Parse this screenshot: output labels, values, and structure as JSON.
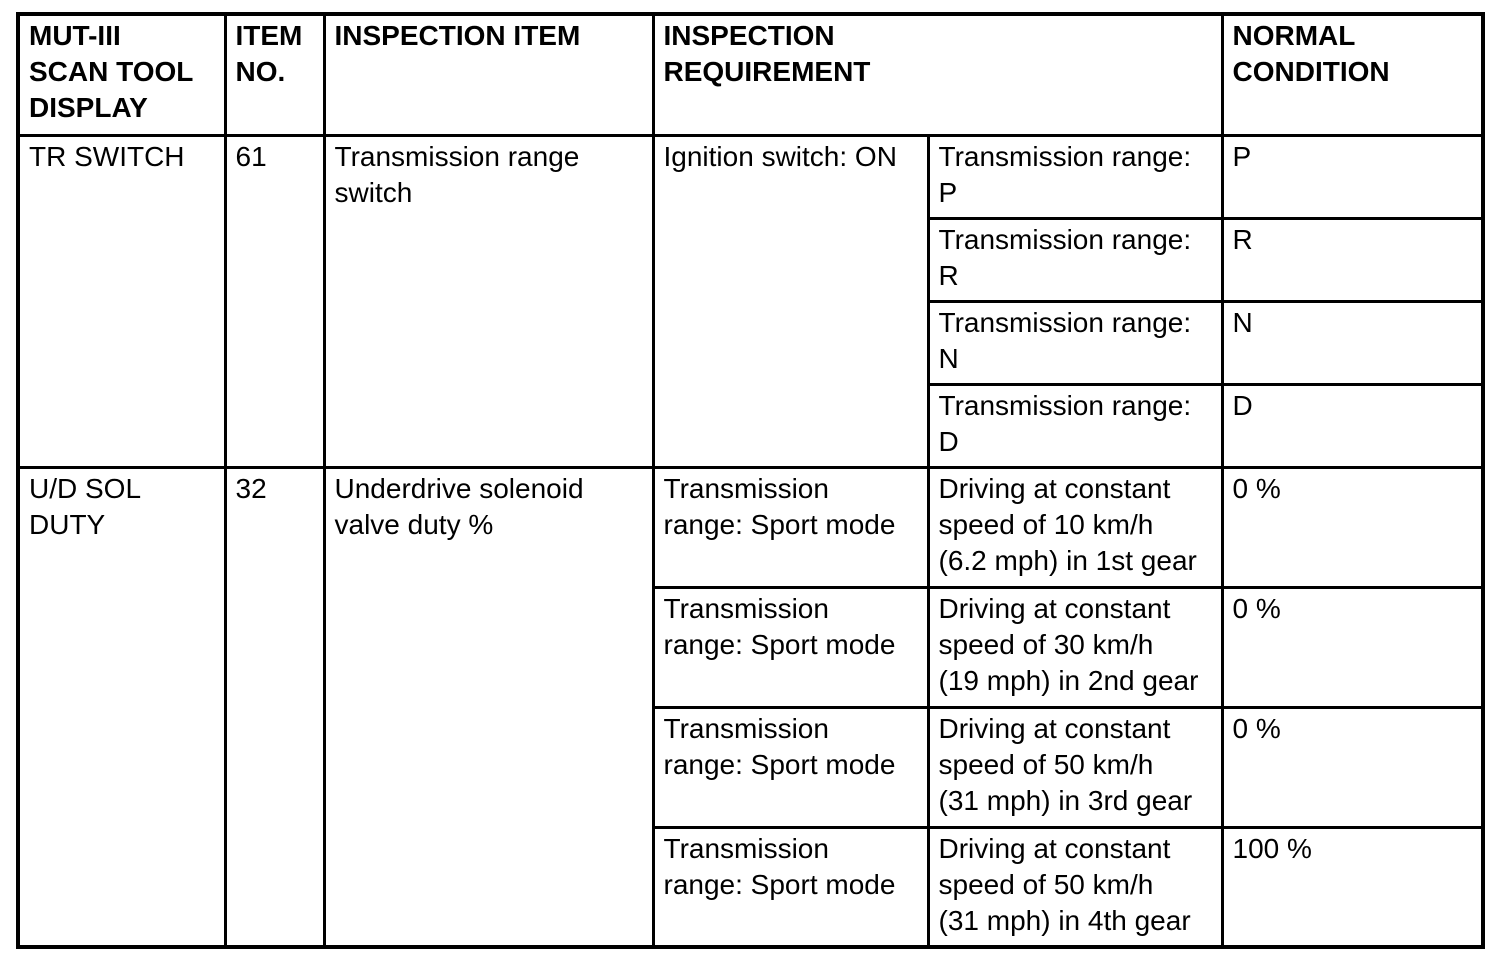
{
  "page": {
    "background": "#ffffff",
    "text_color": "#000000",
    "border_color": "#000000"
  },
  "table": {
    "header": {
      "display": "MUT-III\nSCAN TOOL\nDISPLAY",
      "item_no": "ITEM\nNO.",
      "inspection_item": "INSPECTION ITEM",
      "inspection_requirement": "INSPECTION\nREQUIREMENT",
      "normal_condition": "NORMAL\nCONDITION"
    },
    "groups": [
      {
        "display": "TR SWITCH",
        "item_no": "61",
        "inspection_item": "Transmission range\nswitch",
        "requirement": "Ignition switch: ON",
        "sub": [
          {
            "condition": "Transmission range:\nP",
            "normal": "P"
          },
          {
            "condition": "Transmission range:\nR",
            "normal": "R"
          },
          {
            "condition": "Transmission range:\nN",
            "normal": "N"
          },
          {
            "condition": "Transmission range:\nD",
            "normal": "D"
          }
        ]
      },
      {
        "display": "U/D SOL\nDUTY",
        "item_no": "32",
        "inspection_item": "Underdrive solenoid\nvalve duty %",
        "sub": [
          {
            "requirement": "Transmission\nrange: Sport mode",
            "condition": "Driving at constant\nspeed of 10 km/h\n(6.2 mph) in 1st gear",
            "normal": "0 %"
          },
          {
            "requirement": "Transmission\nrange: Sport mode",
            "condition": "Driving at constant\nspeed of 30 km/h\n(19 mph) in 2nd gear",
            "normal": "0 %"
          },
          {
            "requirement": "Transmission\nrange: Sport mode",
            "condition": "Driving at constant\nspeed of 50 km/h\n(31 mph) in 3rd gear",
            "normal": "0 %"
          },
          {
            "requirement": "Transmission\nrange: Sport mode",
            "condition": "Driving at constant\nspeed of 50 km/h\n(31 mph) in 4th gear",
            "normal": "100 %"
          }
        ]
      }
    ]
  }
}
